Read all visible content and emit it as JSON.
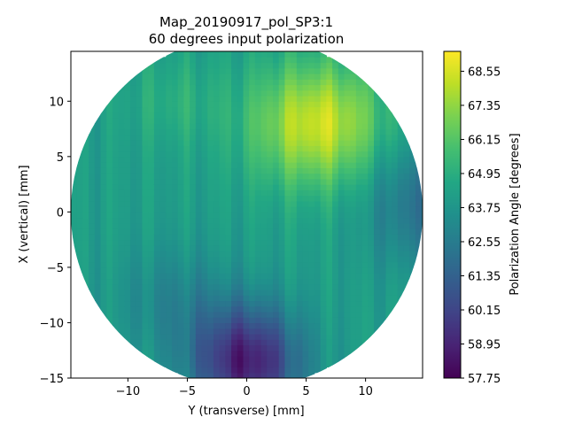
{
  "chart_data": {
    "type": "heatmap",
    "title_line1": "Map_20190917_pol_SP3:1",
    "title_line2": "60 degrees input polarization",
    "xlabel": "Y (transverse) [mm]",
    "ylabel": "X (vertical) [mm]",
    "colorbar_label": "Polarization Angle [degrees]",
    "colormap": "viridis",
    "xlim": [
      -14.8,
      14.8
    ],
    "ylim": [
      -15,
      14.5
    ],
    "x_ticks": [
      -10,
      -5,
      0,
      5,
      10
    ],
    "x_tick_labels": [
      "−10",
      "−5",
      "0",
      "5",
      "10"
    ],
    "y_ticks": [
      -15,
      -10,
      -5,
      0,
      5,
      10
    ],
    "y_tick_labels": [
      "−15",
      "−10",
      "−5",
      "0",
      "5",
      "10"
    ],
    "colorbar_range": [
      57.75,
      69.25
    ],
    "colorbar_ticks": [
      57.75,
      58.95,
      60.15,
      61.35,
      62.55,
      63.75,
      64.95,
      66.15,
      67.35,
      68.55
    ],
    "colorbar_tick_labels": [
      "57.75",
      "58.95",
      "60.15",
      "61.35",
      "62.55",
      "63.75",
      "64.95",
      "66.15",
      "67.35",
      "68.55"
    ],
    "grid": false,
    "data_region": {
      "shape": "circle",
      "center": [
        0,
        0
      ],
      "radius_mm": 14.8
    },
    "value_features": [
      {
        "x": 6,
        "y": 8,
        "value": 68.5
      },
      {
        "x": 0,
        "y": -13,
        "value": 58.2
      },
      {
        "x": 14,
        "y": 2,
        "value": 62.0
      },
      {
        "x": -13,
        "y": 3,
        "value": 63.5
      }
    ]
  }
}
